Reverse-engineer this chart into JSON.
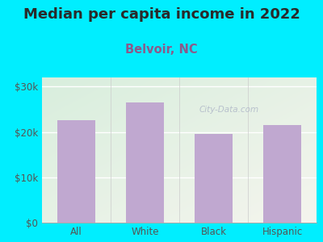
{
  "title": "Median per capita income in 2022",
  "subtitle": "Belvoir, NC",
  "categories": [
    "All",
    "White",
    "Black",
    "Hispanic"
  ],
  "values": [
    22500,
    26500,
    19500,
    21500
  ],
  "bar_color": "#c0a8d0",
  "title_fontsize": 13,
  "title_color": "#2a2a2a",
  "subtitle_fontsize": 10.5,
  "subtitle_color": "#8b5a8b",
  "tick_color": "#555555",
  "background_outer": "#00eeff",
  "ylim": [
    0,
    32000
  ],
  "yticks": [
    0,
    10000,
    20000,
    30000
  ],
  "ytick_labels": [
    "$0",
    "$10k",
    "$20k",
    "$30k"
  ],
  "watermark": "City-Data.com",
  "watermark_color": "#b0b8c8",
  "grid_color": "#e0e8e0"
}
